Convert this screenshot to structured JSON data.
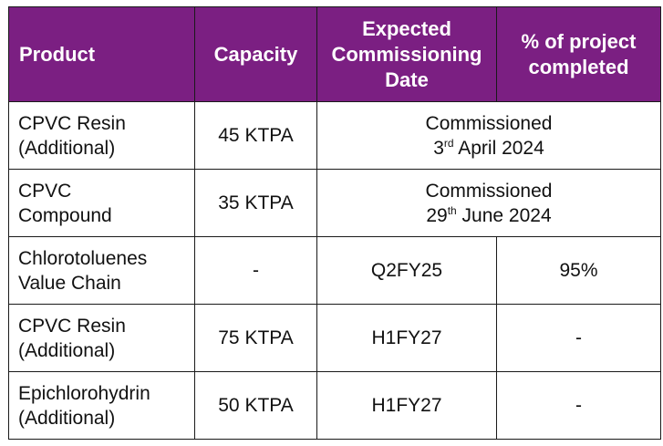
{
  "headers": {
    "product": "Product",
    "capacity": "Capacity",
    "date_line1": "Expected",
    "date_line2": "Commissioning",
    "date_line3": "Date",
    "pct_line1": "% of project",
    "pct_line2": "completed"
  },
  "rows": [
    {
      "product_line1": "CPVC Resin",
      "product_line2": "(Additional)",
      "capacity": "45 KTPA",
      "status": "Commissioned",
      "date_day": "3",
      "date_suffix": "rd",
      "date_rest": " April 2024"
    },
    {
      "product_line1": "CPVC",
      "product_line2": "Compound",
      "capacity": "35 KTPA",
      "status": "Commissioned",
      "date_day": "29",
      "date_suffix": "th",
      "date_rest": " June 2024"
    },
    {
      "product_line1": "Chlorotoluenes",
      "product_line2": "Value Chain",
      "capacity": "-",
      "date": "Q2FY25",
      "pct": "95%"
    },
    {
      "product_line1": "CPVC Resin",
      "product_line2": "(Additional)",
      "capacity": "75 KTPA",
      "date": "H1FY27",
      "pct": "-"
    },
    {
      "product_line1": "Epichlorohydrin",
      "product_line2": "(Additional)",
      "capacity": "50 KTPA",
      "date": "H1FY27",
      "pct": "-"
    }
  ]
}
